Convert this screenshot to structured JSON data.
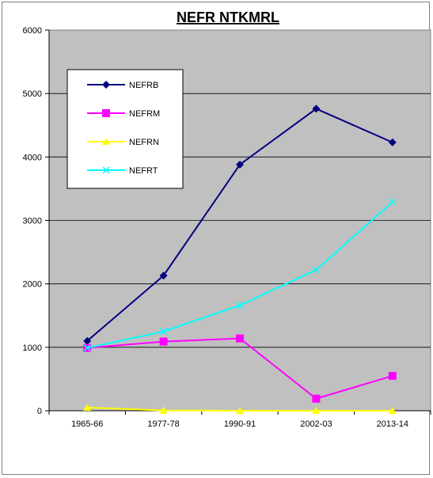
{
  "chart_data": {
    "type": "line",
    "title": "NEFR NTKMRL",
    "categories": [
      "1965-66",
      "1977-78",
      "1990-91",
      "2002-03",
      "2013-14"
    ],
    "ylim": [
      0,
      6000
    ],
    "yticks": [
      0,
      1000,
      2000,
      3000,
      4000,
      5000,
      6000
    ],
    "grid": true,
    "legend_position": "top-left",
    "plot_background": "#c0c0c0",
    "series": [
      {
        "name": "NEFRB",
        "color": "#000080",
        "marker": "diamond",
        "values": [
          1100,
          2130,
          3880,
          4760,
          4230
        ]
      },
      {
        "name": "NEFRM",
        "color": "#ff00ff",
        "marker": "square",
        "values": [
          990,
          1090,
          1140,
          190,
          550
        ]
      },
      {
        "name": "NEFRN",
        "color": "#ffff00",
        "marker": "triangle",
        "values": [
          50,
          5,
          0,
          0,
          0
        ]
      },
      {
        "name": "NEFRT",
        "color": "#00ffff",
        "marker": "x",
        "values": [
          990,
          1250,
          1660,
          2220,
          3290
        ]
      }
    ]
  }
}
